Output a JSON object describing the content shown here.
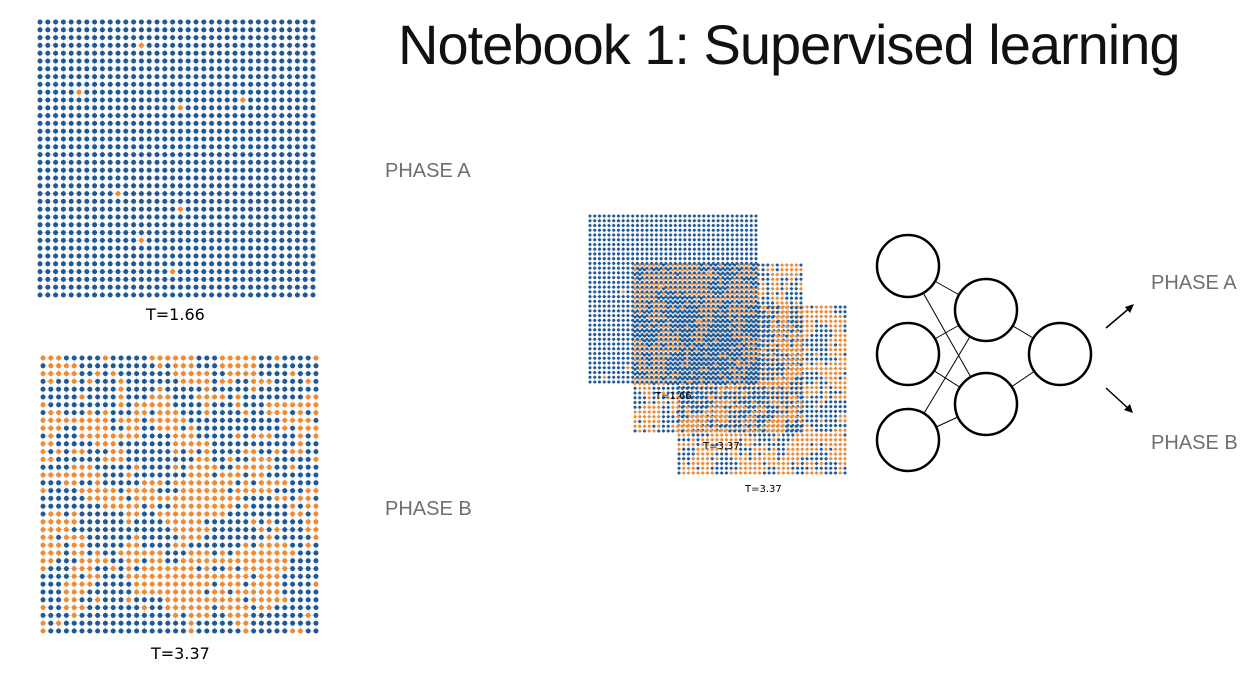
{
  "title": "Notebook 1: Supervised learning",
  "phases": {
    "a": "PHASE A",
    "b": "PHASE B"
  },
  "configs": {
    "low": {
      "label": "T=1.66"
    },
    "high": {
      "label": "T=3.37"
    }
  },
  "colors": {
    "spin_up": "#1f5a96",
    "spin_down": "#f28a30",
    "line": "#cfd6de"
  },
  "network": {
    "input_nodes": 3,
    "hidden_nodes": 2,
    "output_nodes": 1
  },
  "icons": [
    "arrow-up-right-icon",
    "arrow-down-right-icon"
  ]
}
